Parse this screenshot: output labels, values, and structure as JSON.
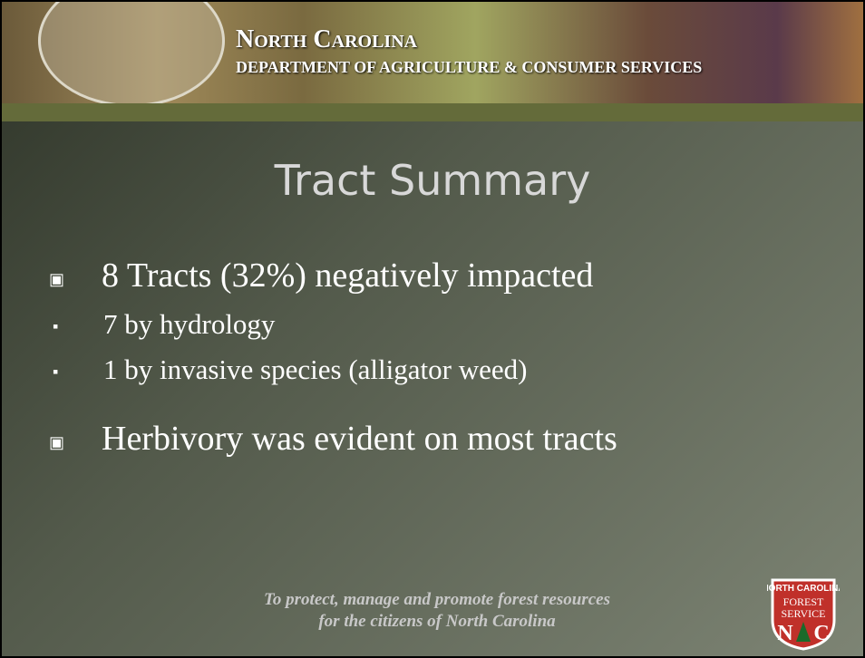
{
  "header": {
    "line1": "North Carolina",
    "line2": "Department of Agriculture & Consumer Services"
  },
  "title": "Tract Summary",
  "bullets": [
    {
      "text": "8 Tracts (32%) negatively impacted",
      "level": 1
    },
    {
      "text": "7 by hydrology",
      "level": 2
    },
    {
      "text": "1 by invasive species (alligator weed)",
      "level": 2
    },
    {
      "text": "Herbivory was evident on most tracts",
      "level": 1
    }
  ],
  "footer": {
    "line1": "To protect, manage and promote forest resources",
    "line2": "for the citizens of North Carolina"
  },
  "badge": {
    "top": "NORTH CAROLINA",
    "mid1": "FOREST",
    "mid2": "SERVICE",
    "left": "N",
    "right": "C"
  }
}
